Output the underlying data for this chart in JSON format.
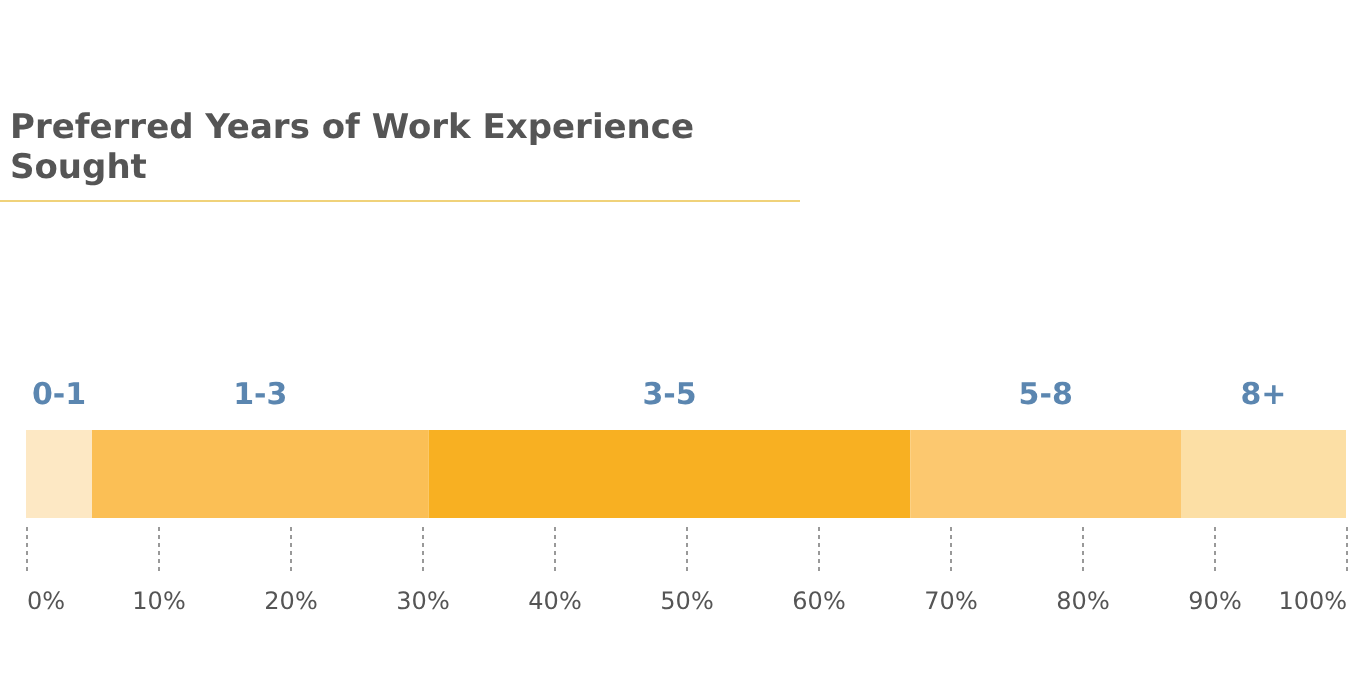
{
  "chart_data": {
    "type": "bar",
    "orientation": "horizontal",
    "stacked": true,
    "title": "Preferred Years of Work Experience Sought",
    "categories": [
      null
    ],
    "series": [
      {
        "name": "0-1",
        "color": "#fde8c4",
        "values": [
          5
        ]
      },
      {
        "name": "1-3",
        "color": "#fbbf55",
        "values": [
          25.5
        ]
      },
      {
        "name": "3-5",
        "color": "#f8b022",
        "values": [
          36.5
        ]
      },
      {
        "name": "5-8",
        "color": "#fcc86f",
        "values": [
          20.5
        ]
      },
      {
        "name": "8+",
        "color": "#fcdfa5",
        "values": [
          12.5
        ]
      }
    ],
    "xlim": [
      0,
      100
    ],
    "xticks": [
      {
        "value": 0,
        "label": "0%"
      },
      {
        "value": 10,
        "label": "10%"
      },
      {
        "value": 20,
        "label": "20%"
      },
      {
        "value": 30,
        "label": "30%"
      },
      {
        "value": 40,
        "label": "40%"
      },
      {
        "value": 50,
        "label": "50%"
      },
      {
        "value": 60,
        "label": "60%"
      },
      {
        "value": 70,
        "label": "70%"
      },
      {
        "value": 80,
        "label": "80%"
      },
      {
        "value": 90,
        "label": "90%"
      },
      {
        "value": 100,
        "label": "100%"
      }
    ],
    "grid": false,
    "legend": false
  }
}
